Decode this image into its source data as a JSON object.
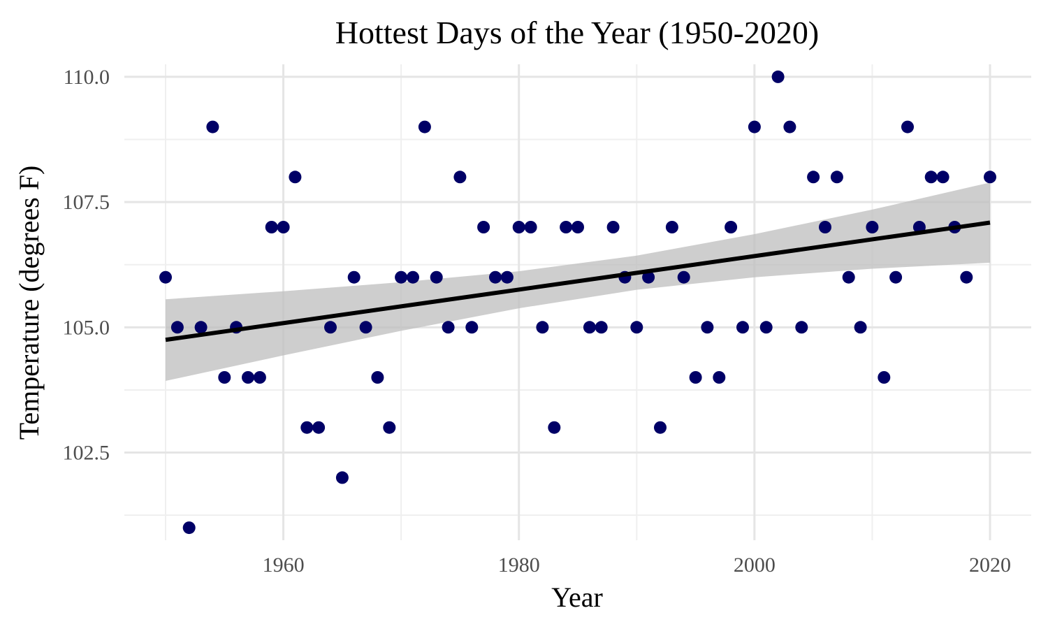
{
  "chart_data": {
    "type": "scatter",
    "title": "Hottest Days of the Year (1950-2020)",
    "xlabel": "Year",
    "ylabel": "Temperature (degrees F)",
    "xlim": [
      1946.5,
      2023.5
    ],
    "ylim": [
      100.75,
      110.25
    ],
    "x_ticks": [
      1960,
      1980,
      2000,
      2020
    ],
    "x_tick_labels": [
      "1960",
      "1980",
      "2000",
      "2020"
    ],
    "y_ticks": [
      102.5,
      105.0,
      107.5,
      110.0
    ],
    "y_tick_labels": [
      "102.5",
      "105.0",
      "107.5",
      "110.0"
    ],
    "grid": true,
    "legend": "none",
    "colors": {
      "points": "#000066",
      "trend_line": "#000000",
      "confidence_band": "#bdbdbd"
    },
    "series": [
      {
        "x": [
          1950,
          1951,
          1952,
          1953,
          1954,
          1955,
          1956,
          1957,
          1958,
          1959,
          1960,
          1961,
          1962,
          1963,
          1964,
          1965,
          1966,
          1967,
          1968,
          1969,
          1970,
          1971,
          1972,
          1973,
          1974,
          1975,
          1976,
          1977,
          1978,
          1979,
          1980,
          1981,
          1982,
          1983,
          1984,
          1985,
          1986,
          1987,
          1988,
          1989,
          1990,
          1991,
          1992,
          1993,
          1994,
          1995,
          1996,
          1997,
          1998,
          1999,
          2000,
          2001,
          2002,
          2003,
          2004,
          2005,
          2006,
          2007,
          2008,
          2009,
          2010,
          2011,
          2012,
          2013,
          2014,
          2015,
          2016,
          2017,
          2018,
          2020
        ],
        "y": [
          106,
          105,
          101,
          105,
          109,
          104,
          105,
          104,
          104,
          107,
          107,
          108,
          103,
          103,
          105,
          102,
          106,
          105,
          104,
          103,
          106,
          106,
          109,
          106,
          105,
          108,
          105,
          107,
          106,
          106,
          107,
          107,
          105,
          103,
          107,
          107,
          105,
          105,
          107,
          106,
          105,
          106,
          103,
          107,
          106,
          104,
          105,
          104,
          107,
          105,
          109,
          105,
          110,
          109,
          105,
          108,
          107,
          108,
          106,
          105,
          107,
          104,
          106,
          109,
          107,
          108,
          108,
          107,
          106,
          108
        ]
      }
    ],
    "trend": {
      "method": "linear regression",
      "x": [
        1950,
        1960,
        1970,
        1980,
        1990,
        2000,
        2010,
        2020
      ],
      "y": [
        104.75,
        105.08,
        105.42,
        105.75,
        106.09,
        106.42,
        106.76,
        107.09
      ],
      "ci_lower": [
        103.93,
        104.44,
        104.93,
        105.38,
        105.75,
        106.0,
        106.17,
        106.29
      ],
      "ci_upper": [
        105.56,
        105.72,
        105.9,
        106.12,
        106.43,
        106.86,
        107.35,
        107.89
      ]
    }
  }
}
